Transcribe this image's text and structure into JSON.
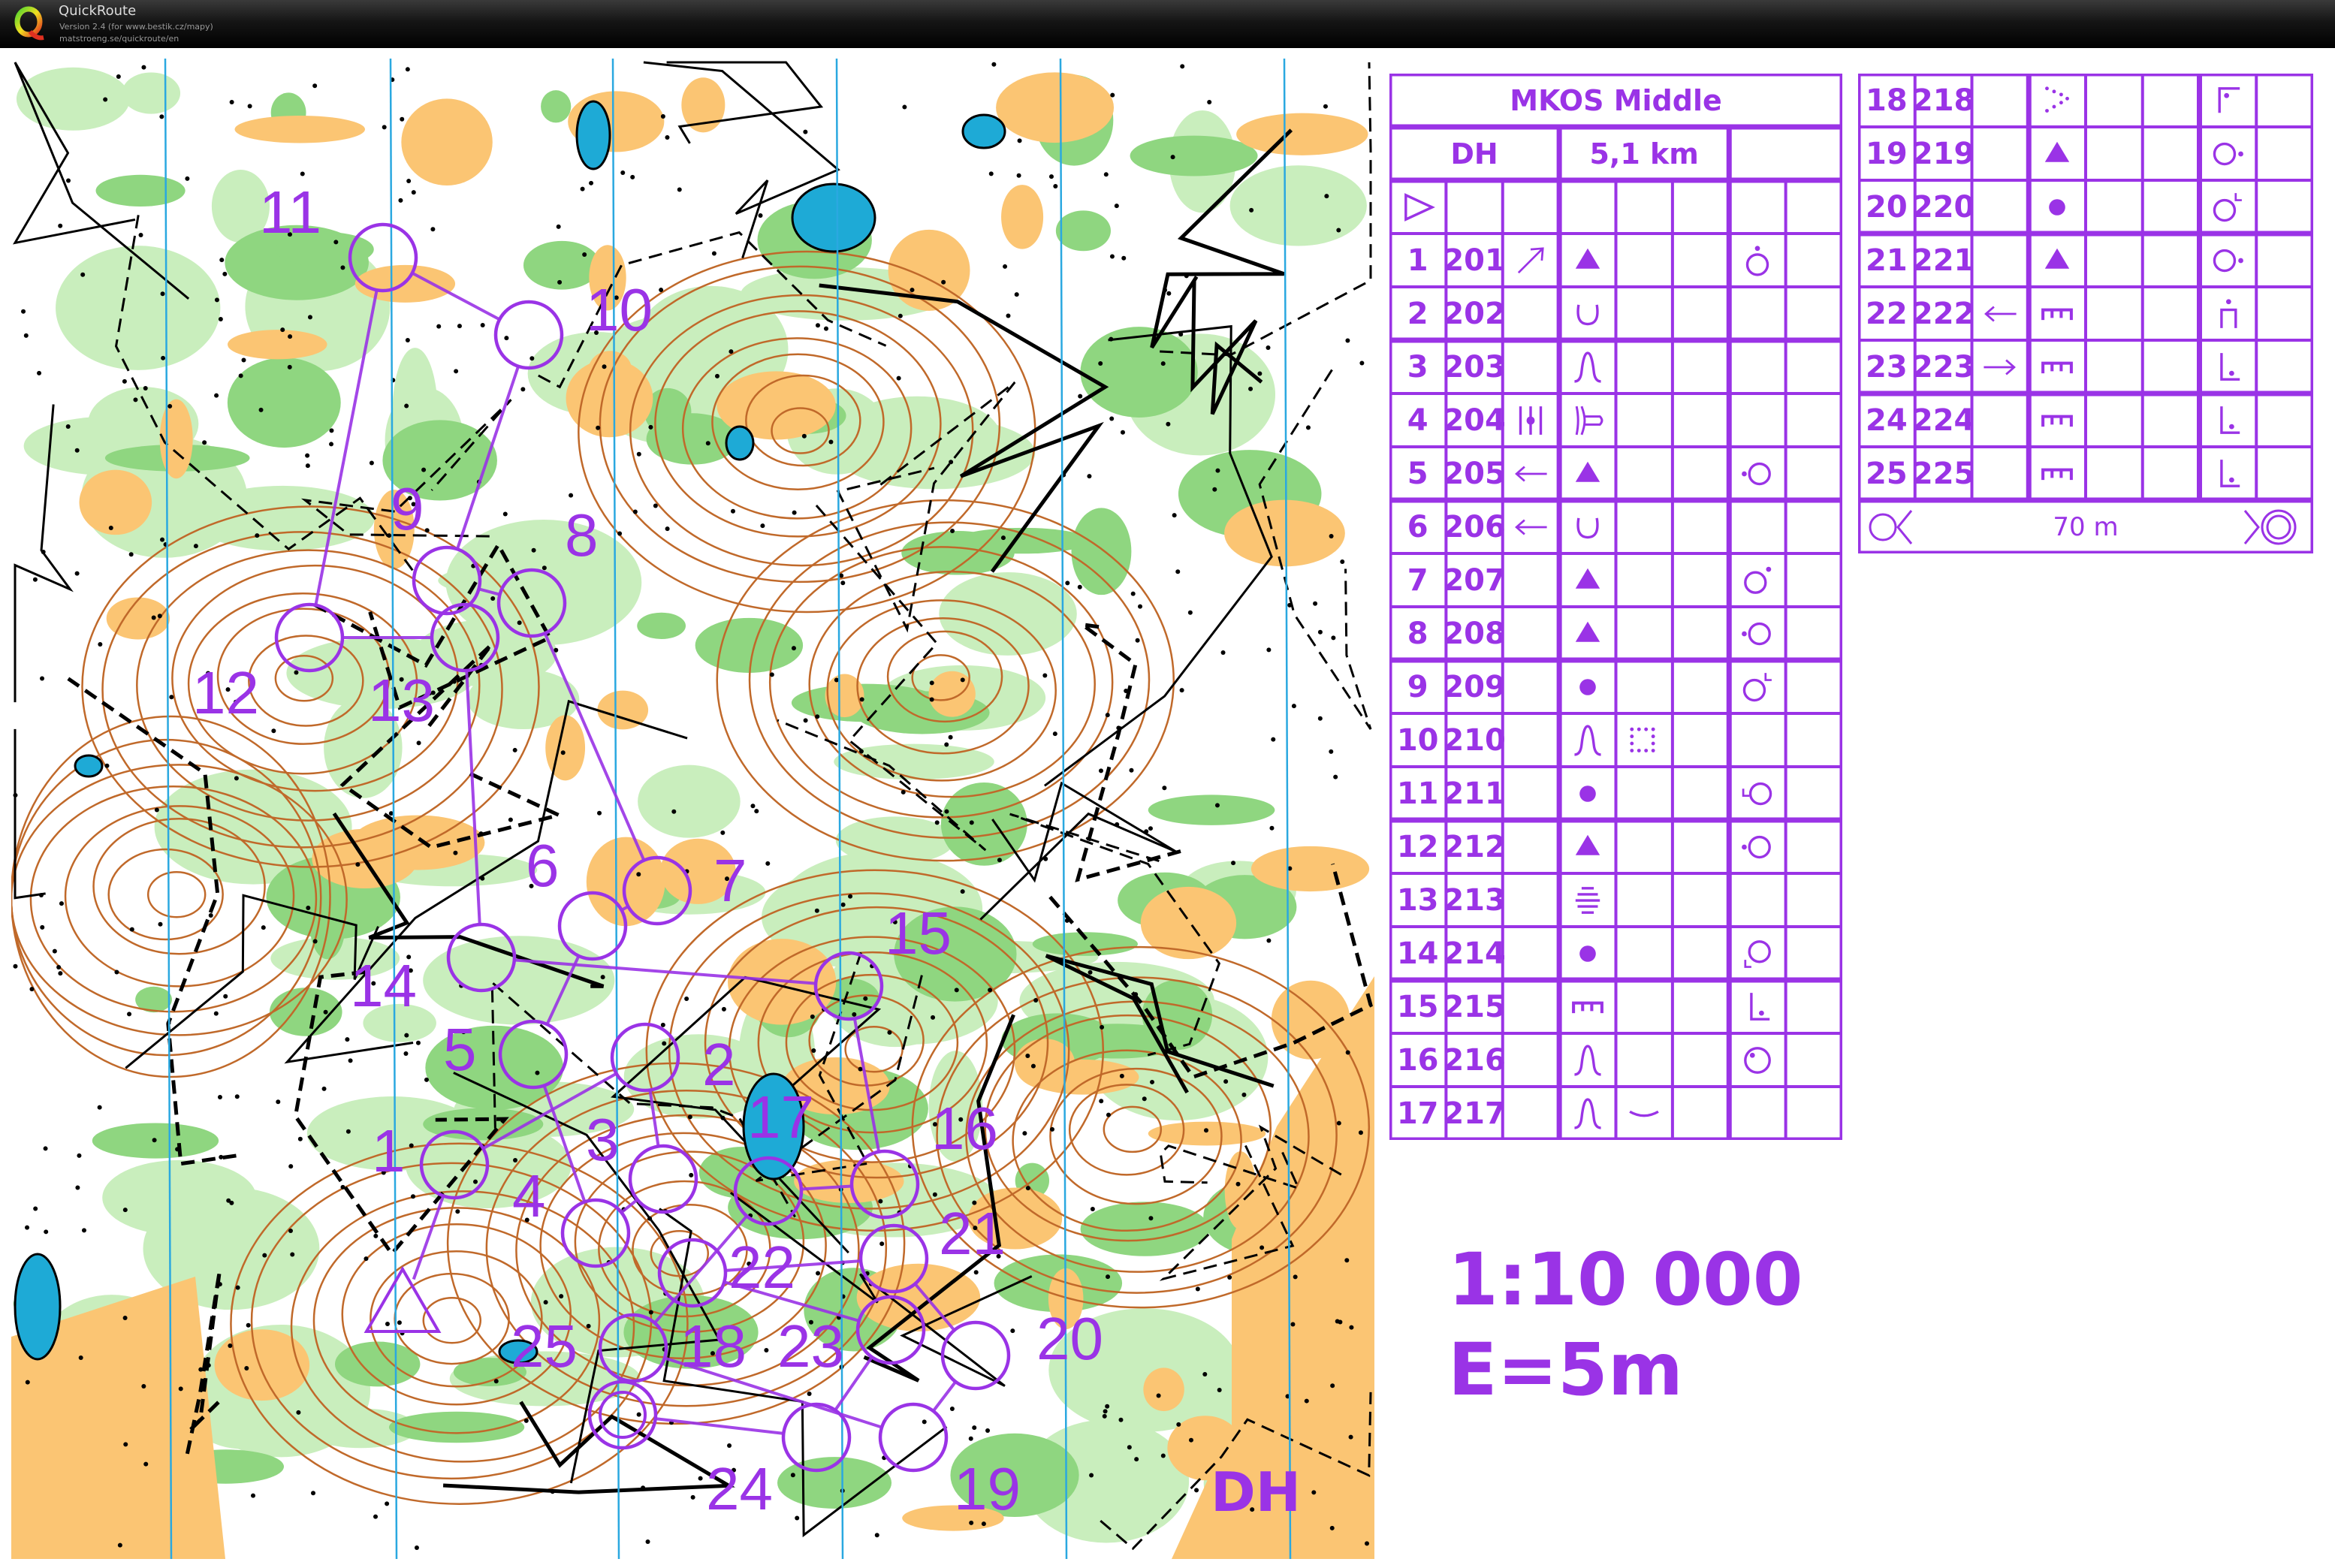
{
  "app": {
    "title": "QuickRoute",
    "version": "Version 2.4  (for www.bestik.cz/mapy)",
    "url": "matstroeng.se/quickroute/en"
  },
  "colors": {
    "course": "#9a33e6",
    "green": "#8fd680",
    "light_green": "#c9eebd",
    "orange": "#fbc573",
    "contour": "#c0692a",
    "water": "#1eaad6",
    "north_line": "#2aa8e0"
  },
  "course": {
    "event": "MKOS Middle",
    "class": "DH",
    "length": "5,1 km",
    "scale": "1:10 000",
    "contour_interval": "E=5m",
    "map_class_label": "DH",
    "finish_distance": "70 m",
    "start_icon": "start-triangle-icon",
    "finish_icons": [
      "finish-circle-icon",
      "finish-funnel-icon",
      "finish-double-circle-icon"
    ],
    "controls": [
      {
        "n": "1",
        "code": "201",
        "dir": "arrow-ne",
        "feature": "triangle",
        "extra": "",
        "loc": "dot-top"
      },
      {
        "n": "2",
        "code": "202",
        "dir": "",
        "feature": "depression",
        "extra": "",
        "loc": ""
      },
      {
        "n": "3",
        "code": "203",
        "dir": "",
        "feature": "knoll",
        "extra": "",
        "loc": ""
      },
      {
        "n": "4",
        "code": "204",
        "dir": "between",
        "feature": "reentrant",
        "extra": "",
        "loc": ""
      },
      {
        "n": "5",
        "code": "205",
        "dir": "arrow-w",
        "feature": "triangle",
        "extra": "",
        "loc": "dot-left"
      },
      {
        "n": "6",
        "code": "206",
        "dir": "arrow-w",
        "feature": "depression",
        "extra": "",
        "loc": ""
      },
      {
        "n": "7",
        "code": "207",
        "dir": "",
        "feature": "triangle",
        "extra": "",
        "loc": "dot-ne"
      },
      {
        "n": "8",
        "code": "208",
        "dir": "",
        "feature": "triangle",
        "extra": "",
        "loc": "dot-left"
      },
      {
        "n": "9",
        "code": "209",
        "dir": "",
        "feature": "dot",
        "extra": "",
        "loc": "corner-ne"
      },
      {
        "n": "10",
        "code": "210",
        "dir": "",
        "feature": "knoll",
        "extra": "dotted-square",
        "loc": ""
      },
      {
        "n": "11",
        "code": "211",
        "dir": "",
        "feature": "dot",
        "extra": "",
        "loc": "corner-w"
      },
      {
        "n": "12",
        "code": "212",
        "dir": "",
        "feature": "triangle",
        "extra": "",
        "loc": "dot-left"
      },
      {
        "n": "13",
        "code": "213",
        "dir": "",
        "feature": "marsh",
        "extra": "",
        "loc": ""
      },
      {
        "n": "14",
        "code": "214",
        "dir": "",
        "feature": "dot",
        "extra": "",
        "loc": "corner-sw"
      },
      {
        "n": "15",
        "code": "215",
        "dir": "",
        "feature": "cliff",
        "extra": "",
        "loc": "foot"
      },
      {
        "n": "16",
        "code": "216",
        "dir": "",
        "feature": "knoll",
        "extra": "",
        "loc": "dot-inside"
      },
      {
        "n": "17",
        "code": "217",
        "dir": "",
        "feature": "knoll",
        "extra": "shallow",
        "loc": ""
      },
      {
        "n": "18",
        "code": "218",
        "dir": "",
        "feature": "dotted-chevron",
        "extra": "",
        "loc": "corner-top"
      },
      {
        "n": "19",
        "code": "219",
        "dir": "",
        "feature": "triangle",
        "extra": "",
        "loc": "dot-right"
      },
      {
        "n": "20",
        "code": "220",
        "dir": "",
        "feature": "dot",
        "extra": "",
        "loc": "corner-ne"
      },
      {
        "n": "21",
        "code": "221",
        "dir": "",
        "feature": "triangle",
        "extra": "",
        "loc": "dot-right"
      },
      {
        "n": "22",
        "code": "222",
        "dir": "arrow-w",
        "feature": "cliff",
        "extra": "",
        "loc": "top"
      },
      {
        "n": "23",
        "code": "223",
        "dir": "arrow-e",
        "feature": "cliff",
        "extra": "",
        "loc": "foot"
      },
      {
        "n": "24",
        "code": "224",
        "dir": "",
        "feature": "cliff",
        "extra": "",
        "loc": "foot"
      },
      {
        "n": "25",
        "code": "225",
        "dir": "",
        "feature": "cliff",
        "extra": "",
        "loc": "foot"
      }
    ]
  }
}
